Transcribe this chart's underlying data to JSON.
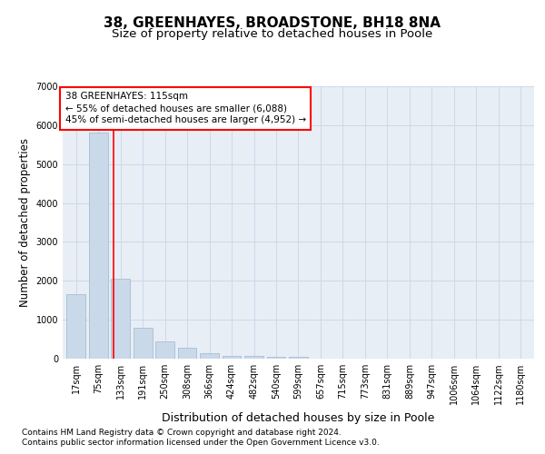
{
  "title1": "38, GREENHAYES, BROADSTONE, BH18 8NA",
  "title2": "Size of property relative to detached houses in Poole",
  "xlabel": "Distribution of detached houses by size in Poole",
  "ylabel": "Number of detached properties",
  "bin_labels": [
    "17sqm",
    "75sqm",
    "133sqm",
    "191sqm",
    "250sqm",
    "308sqm",
    "366sqm",
    "424sqm",
    "482sqm",
    "540sqm",
    "599sqm",
    "657sqm",
    "715sqm",
    "773sqm",
    "831sqm",
    "889sqm",
    "947sqm",
    "1006sqm",
    "1064sqm",
    "1122sqm",
    "1180sqm"
  ],
  "bar_values": [
    1650,
    5800,
    2050,
    800,
    450,
    290,
    145,
    80,
    60,
    45,
    40,
    0,
    0,
    0,
    0,
    0,
    0,
    0,
    0,
    0,
    0
  ],
  "bar_color": "#c9d9ea",
  "bar_edge_color": "#a8bece",
  "grid_color": "#cdd8e8",
  "background_color": "#e8eef6",
  "property_line_label": "38 GREENHAYES: 115sqm",
  "annotation_line1": "← 55% of detached houses are smaller (6,088)",
  "annotation_line2": "45% of semi-detached houses are larger (4,952) →",
  "annotation_box_color": "white",
  "annotation_box_edge_color": "red",
  "line_color": "red",
  "ylim": [
    0,
    7000
  ],
  "yticks": [
    0,
    1000,
    2000,
    3000,
    4000,
    5000,
    6000,
    7000
  ],
  "footnote1": "Contains HM Land Registry data © Crown copyright and database right 2024.",
  "footnote2": "Contains public sector information licensed under the Open Government Licence v3.0.",
  "title1_fontsize": 11,
  "title2_fontsize": 9.5,
  "tick_fontsize": 7,
  "ylabel_fontsize": 8.5,
  "xlabel_fontsize": 9,
  "annot_fontsize": 7.5,
  "footnote_fontsize": 6.5
}
